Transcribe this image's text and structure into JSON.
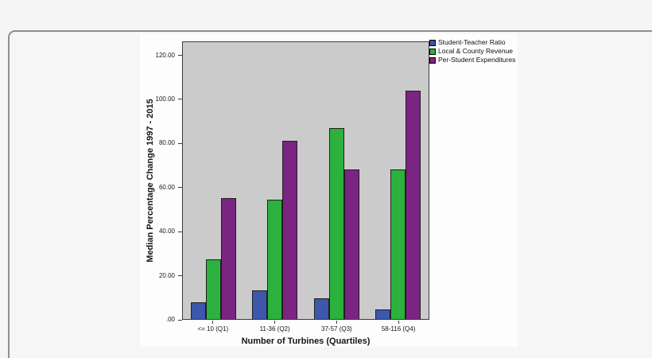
{
  "page": {
    "background_color": "#f5f5f6",
    "panel_border_color": "#8f8f8f",
    "card_background_color": "#fdfdfd"
  },
  "chart_data": {
    "type": "bar",
    "title": "",
    "xlabel": "Number of Turbines (Quartiles)",
    "ylabel": "Median Percentage Change 1997 - 2015",
    "categories": [
      "<= 10 (Q1)",
      "11-36 (Q2)",
      "37-57 (Q3)",
      "58-116 (Q4)"
    ],
    "series": [
      {
        "name": "Student-Teacher Ratio",
        "color": "#3c57ab",
        "values": [
          7.5,
          13,
          9.5,
          4.5
        ]
      },
      {
        "name": "Local & County Revenue",
        "color": "#2cb13e",
        "values": [
          27,
          54,
          86.5,
          68
        ]
      },
      {
        "name": "Per-Student Expenditures",
        "color": "#7b2482",
        "values": [
          55,
          81,
          68,
          103.5
        ]
      }
    ],
    "yticks": [
      {
        "value": 0,
        "label": ".00"
      },
      {
        "value": 20,
        "label": "20.00"
      },
      {
        "value": 40,
        "label": "40.00"
      },
      {
        "value": 60,
        "label": "60.00"
      },
      {
        "value": 80,
        "label": "80.00"
      },
      {
        "value": 100,
        "label": "100.00"
      },
      {
        "value": 120,
        "label": "120.00"
      }
    ],
    "ylim": [
      0,
      126
    ],
    "grid": false,
    "legend_position": "top-right-outside",
    "plot_background": "#cbcbcb",
    "bar_border_color": "#202020"
  }
}
